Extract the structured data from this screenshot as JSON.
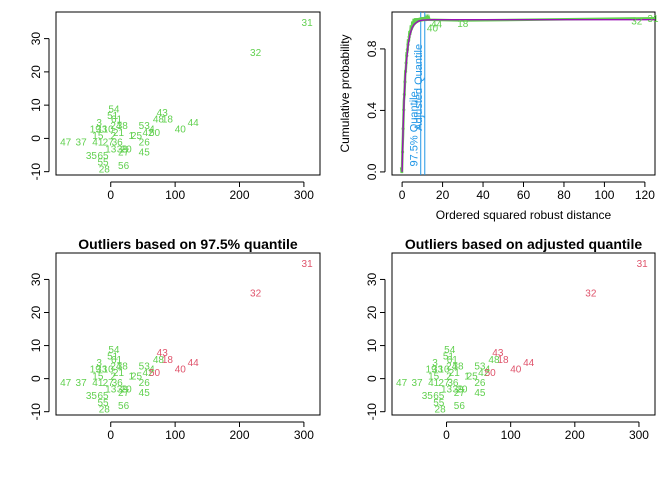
{
  "colors": {
    "normal": "#61D04F",
    "outlier": "#DF536B",
    "cdf_empirical": "#61D04F",
    "cdf_theoretical": "#9B12B5",
    "quantile_lines": "#2297E6",
    "axis": "#000000"
  },
  "chart_data": [
    {
      "id": "scatter-top-left",
      "type": "scatter",
      "title": "",
      "xlabel": "",
      "ylabel": "",
      "xlim": [
        -85,
        325
      ],
      "ylim": [
        -11,
        38
      ],
      "xticks": [
        0,
        100,
        200,
        300
      ],
      "yticks": [
        -10,
        0,
        10,
        20,
        30
      ],
      "legend": "none",
      "highlight": [],
      "points": [
        {
          "x": 305,
          "y": 35,
          "label": "31"
        },
        {
          "x": 225,
          "y": 26,
          "label": "32"
        },
        {
          "x": 80,
          "y": 8,
          "label": "43"
        },
        {
          "x": 88,
          "y": 6,
          "label": "18"
        },
        {
          "x": 74,
          "y": 6,
          "label": "48"
        },
        {
          "x": 128,
          "y": 5,
          "label": "44"
        },
        {
          "x": 108,
          "y": 3,
          "label": "40"
        },
        {
          "x": 52,
          "y": 4,
          "label": "53"
        },
        {
          "x": 64,
          "y": 3,
          "label": "4"
        },
        {
          "x": 58,
          "y": 2,
          "label": "42"
        },
        {
          "x": 68,
          "y": 2,
          "label": "50"
        },
        {
          "x": 40,
          "y": 1,
          "label": "25"
        },
        {
          "x": 32,
          "y": 1,
          "label": "1"
        },
        {
          "x": 52,
          "y": -1,
          "label": "26"
        },
        {
          "x": 52,
          "y": -4,
          "label": "45"
        },
        {
          "x": 5,
          "y": 9,
          "label": "54"
        },
        {
          "x": 9,
          "y": 6,
          "label": "61"
        },
        {
          "x": 3,
          "y": 7,
          "label": "51"
        },
        {
          "x": 18,
          "y": 4,
          "label": "38"
        },
        {
          "x": 8,
          "y": 4,
          "label": "24"
        },
        {
          "x": -4,
          "y": 3,
          "label": "10"
        },
        {
          "x": -18,
          "y": 5,
          "label": "3"
        },
        {
          "x": -24,
          "y": 3,
          "label": "19"
        },
        {
          "x": -14,
          "y": 3,
          "label": "33"
        },
        {
          "x": -20,
          "y": 1,
          "label": "15"
        },
        {
          "x": 4,
          "y": 1,
          "label": "2"
        },
        {
          "x": 12,
          "y": 2,
          "label": "21"
        },
        {
          "x": -20,
          "y": -1,
          "label": "41"
        },
        {
          "x": -4,
          "y": -1,
          "label": "27"
        },
        {
          "x": 10,
          "y": -1,
          "label": "36"
        },
        {
          "x": 0,
          "y": -3,
          "label": "13"
        },
        {
          "x": 18,
          "y": -3,
          "label": "39"
        },
        {
          "x": 24,
          "y": -3,
          "label": "20"
        },
        {
          "x": 20,
          "y": -4,
          "label": "27"
        },
        {
          "x": -46,
          "y": -1,
          "label": "37"
        },
        {
          "x": -70,
          "y": -1,
          "label": "47"
        },
        {
          "x": -30,
          "y": -5,
          "label": "35"
        },
        {
          "x": -12,
          "y": -5,
          "label": "65"
        },
        {
          "x": -12,
          "y": -7,
          "label": "55"
        },
        {
          "x": -10,
          "y": -9,
          "label": "28"
        },
        {
          "x": 20,
          "y": -8,
          "label": "56"
        }
      ]
    },
    {
      "id": "cdf-top-right",
      "type": "line",
      "title": "",
      "xlabel": "Ordered squared robust distance",
      "ylabel": "Cumulative probability",
      "xlim": [
        -5,
        125
      ],
      "ylim": [
        -0.02,
        1.04
      ],
      "xticks": [
        0,
        20,
        40,
        60,
        80,
        100,
        120
      ],
      "yticks": [
        0.0,
        0.4,
        0.8
      ],
      "legend": "none",
      "series": [
        {
          "name": "",
          "kind": "theoretical-cdf",
          "shape": 0.95,
          "x": [
            0,
            0.5,
            1,
            1.5,
            2,
            3,
            4,
            5,
            6,
            8,
            10,
            12,
            15,
            20,
            30,
            40,
            60,
            80,
            100,
            125
          ]
        },
        {
          "name": "",
          "kind": "empirical-cdf"
        }
      ],
      "quantile_lines": [
        {
          "x": 9.2,
          "label": "97.5% Quantile"
        },
        {
          "x": 11.2,
          "label": "Adjusted Quantile"
        }
      ],
      "point_labels": [
        {
          "x": 124,
          "y": 1.0,
          "label": "31"
        },
        {
          "x": 116,
          "y": 0.985,
          "label": "32"
        },
        {
          "x": 30,
          "y": 0.97,
          "label": "18"
        },
        {
          "x": 17,
          "y": 0.965,
          "label": "44"
        },
        {
          "x": 15,
          "y": 0.94,
          "label": "40"
        }
      ]
    },
    {
      "id": "scatter-bottom-left",
      "type": "scatter",
      "title": "Outliers based on 97.5% quantile",
      "xlabel": "",
      "ylabel": "",
      "xlim": [
        -85,
        325
      ],
      "ylim": [
        -11,
        38
      ],
      "xticks": [
        0,
        100,
        200,
        300
      ],
      "yticks": [
        -10,
        0,
        10,
        20,
        30
      ],
      "legend": "none",
      "highlight": [
        "31",
        "32",
        "43",
        "18",
        "44",
        "40",
        "50"
      ]
    },
    {
      "id": "scatter-bottom-right",
      "type": "scatter",
      "title": "Outliers based on adjusted quantile",
      "xlabel": "",
      "ylabel": "",
      "xlim": [
        -85,
        325
      ],
      "ylim": [
        -11,
        38
      ],
      "xticks": [
        0,
        100,
        200,
        300
      ],
      "yticks": [
        -10,
        0,
        10,
        20,
        30
      ],
      "legend": "none",
      "highlight": [
        "31",
        "32",
        "43",
        "18",
        "44",
        "40",
        "50"
      ]
    }
  ]
}
